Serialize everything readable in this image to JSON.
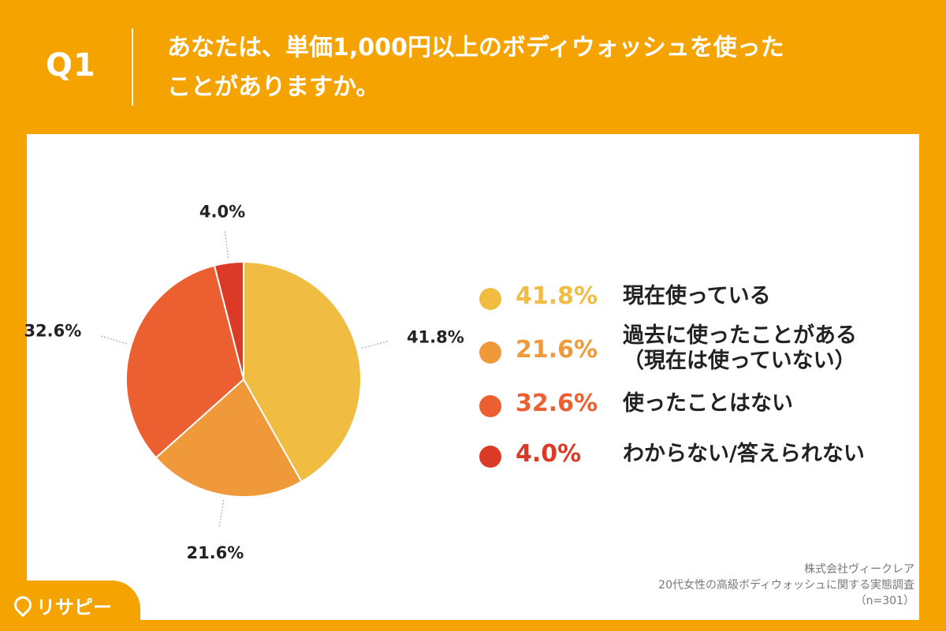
{
  "header": {
    "q_label": "Q1",
    "question_line1": "あなたは、単価1,000円以上のボディウォッシュを使った",
    "question_line2": "ことがありますか。"
  },
  "chart_data": {
    "type": "pie",
    "title": "",
    "slices": [
      {
        "label_line1": "現在使っている",
        "label_line2": "",
        "value": 41.8,
        "pct_text": "41.8%",
        "color": "#F0BC42"
      },
      {
        "label_line1": "過去に使ったことがある",
        "label_line2": "（現在は使っていない）",
        "value": 21.6,
        "pct_text": "21.6%",
        "color": "#EF993A"
      },
      {
        "label_line1": "使ったことはない",
        "label_line2": "",
        "value": 32.6,
        "pct_text": "32.6%",
        "color": "#EB5F30"
      },
      {
        "label_line1": "わからない/答えられない",
        "label_line2": "",
        "value": 4.0,
        "pct_text": "4.0%",
        "color": "#DB3A27"
      }
    ],
    "legend_position": "right"
  },
  "source": {
    "company": "株式会社ヴィークレア",
    "survey": "20代女性の高級ボディウォッシュに関する実態調査",
    "n": "（n=301）"
  },
  "brand": {
    "name": "リサピー",
    "icon": "map-pin-icon"
  },
  "colors": {
    "background": "#F5A300",
    "panel": "#FFFFFF"
  }
}
